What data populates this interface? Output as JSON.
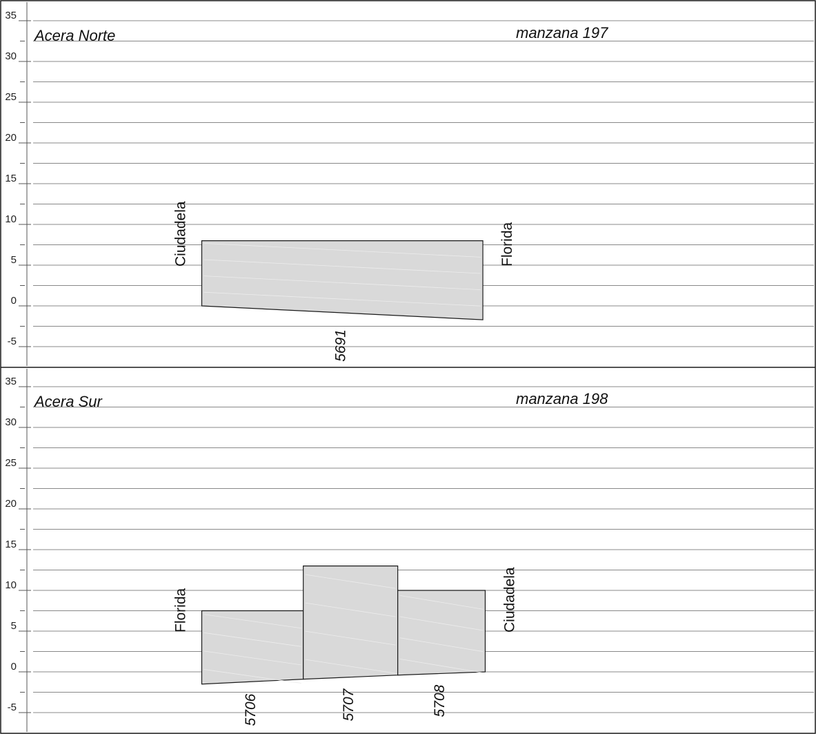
{
  "y_ticks": [
    35,
    30,
    25,
    20,
    15,
    10,
    5,
    0,
    -5
  ],
  "y_range": [
    -7.5,
    37.5
  ],
  "x_range": [
    0,
    1
  ],
  "colors": {
    "frame": "#1a1a1a",
    "grid": "#888888",
    "lot_fill": "#d9d9d9",
    "lot_stroke": "#1a1a1a"
  },
  "panels": [
    {
      "side_label": "Acera Norte",
      "block_label": "manzana 197",
      "left_street": "Ciudadela",
      "right_street": "Florida",
      "lots": [
        {
          "id": "5691",
          "x_start": 0.216,
          "x_end": 0.576,
          "top": 8.0,
          "bottom_start": 0.0,
          "bottom_end": -1.7
        }
      ]
    },
    {
      "side_label": "Acera Sur",
      "block_label": "manzana 198",
      "left_street": "Florida",
      "right_street": "Ciudadela",
      "lots": [
        {
          "id": "5706",
          "x_start": 0.216,
          "x_end": 0.346,
          "top": 7.5,
          "bottom_start": -1.5,
          "bottom_end": -0.9
        },
        {
          "id": "5707",
          "x_start": 0.346,
          "x_end": 0.467,
          "top": 13.0,
          "bottom_start": -0.9,
          "bottom_end": -0.4
        },
        {
          "id": "5708",
          "x_start": 0.467,
          "x_end": 0.579,
          "top": 10.0,
          "bottom_start": -0.4,
          "bottom_end": 0.0
        }
      ]
    }
  ]
}
